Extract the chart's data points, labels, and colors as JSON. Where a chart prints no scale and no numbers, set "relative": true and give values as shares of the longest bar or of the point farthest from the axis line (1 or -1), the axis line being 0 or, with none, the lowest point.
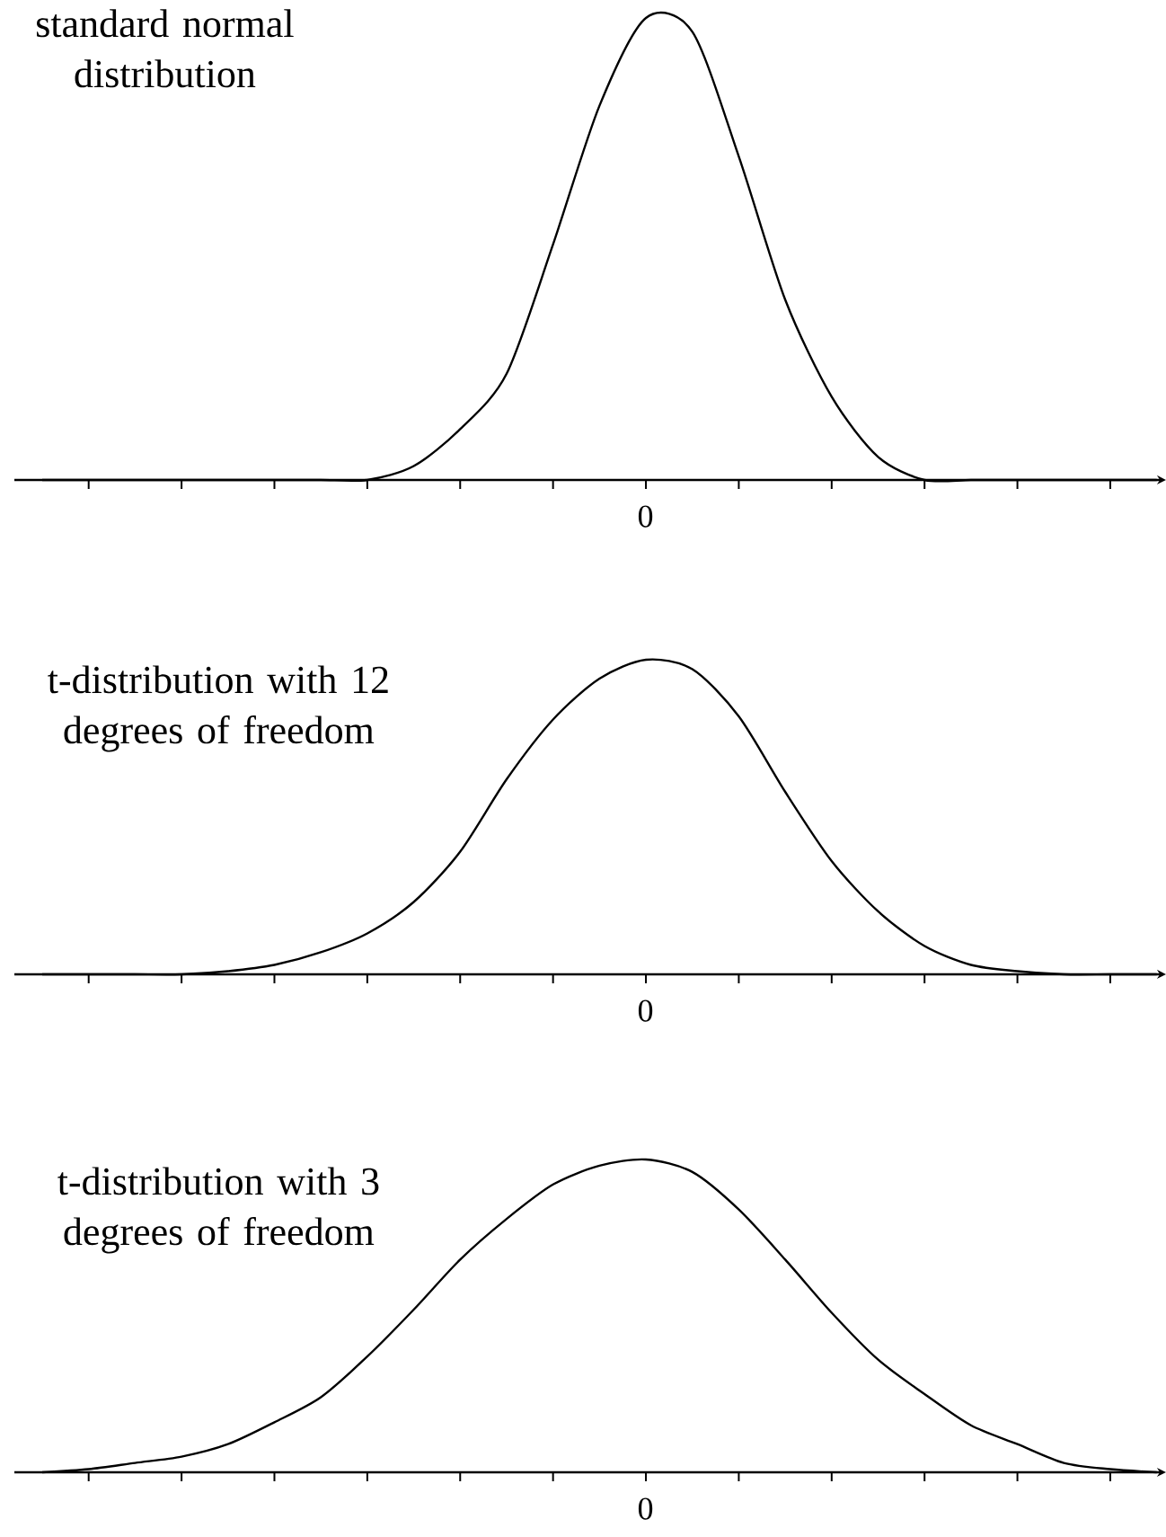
{
  "chart_data": [
    {
      "type": "line",
      "title": "standard normal distribution",
      "relative": true,
      "annotations": [
        "0"
      ],
      "color": "#000000",
      "categories": [
        null,
        null,
        null,
        null,
        null,
        null,
        null,
        null,
        null,
        null,
        null,
        null,
        null,
        null,
        null,
        null,
        null,
        null,
        null,
        null,
        null,
        null,
        null,
        null,
        null
      ],
      "values": [
        0,
        0,
        0,
        0,
        0,
        0,
        0,
        0,
        0.03,
        0.11,
        0.23,
        0.51,
        0.81,
        1,
        0.97,
        0.7,
        0.39,
        0.18,
        0.05,
        0,
        0,
        0,
        0,
        0,
        0
      ]
    },
    {
      "type": "line",
      "title": "t-distribution with 12 degrees of freedom",
      "relative": true,
      "annotations": [
        "0"
      ],
      "color": "#000000",
      "categories": [
        null,
        null,
        null,
        null,
        null,
        null,
        null,
        null,
        null,
        null,
        null,
        null,
        null,
        null,
        null,
        null,
        null,
        null,
        null,
        null,
        null,
        null,
        null,
        null,
        null
      ],
      "values": [
        0,
        0,
        0,
        0,
        0.01,
        0.03,
        0.07,
        0.13,
        0.23,
        0.39,
        0.62,
        0.81,
        0.94,
        1,
        0.97,
        0.82,
        0.58,
        0.36,
        0.2,
        0.09,
        0.03,
        0.01,
        0,
        0,
        0
      ]
    },
    {
      "type": "line",
      "title": "t-distribution with 3 degrees of freedom",
      "relative": true,
      "annotations": [
        "0"
      ],
      "color": "#000000",
      "categories": [
        null,
        null,
        null,
        null,
        null,
        null,
        null,
        null,
        null,
        null,
        null,
        null,
        null,
        null,
        null,
        null,
        null,
        null,
        null,
        null,
        null,
        null,
        null,
        null,
        null
      ],
      "values": [
        0,
        0.01,
        0.03,
        0.05,
        0.09,
        0.16,
        0.24,
        0.37,
        0.52,
        0.68,
        0.81,
        0.92,
        0.98,
        1,
        0.96,
        0.84,
        0.68,
        0.51,
        0.36,
        0.25,
        0.15,
        0.09,
        0.03,
        0.01,
        0
      ]
    }
  ]
}
